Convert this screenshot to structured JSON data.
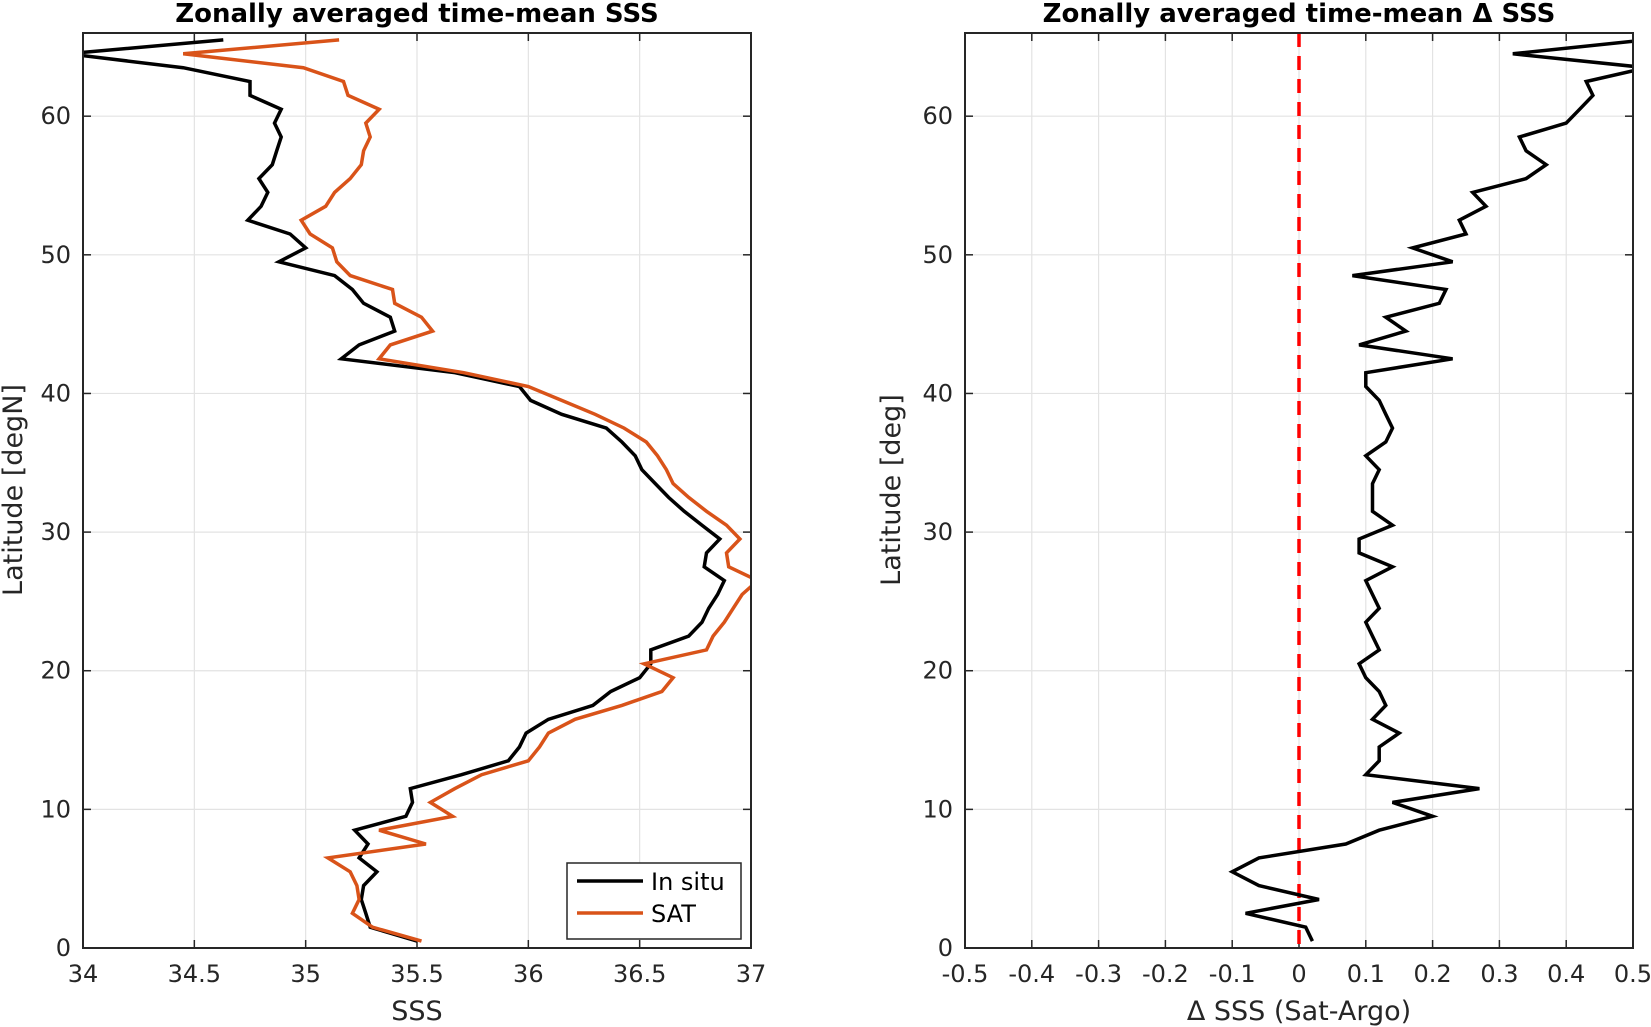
{
  "chart_data": [
    {
      "type": "line",
      "title": "Zonally averaged time-mean SSS",
      "xlabel": "SSS",
      "ylabel": "Latitude [degN]",
      "xlim": [
        34,
        37
      ],
      "ylim": [
        0,
        66
      ],
      "xticks": [
        "34",
        "34.5",
        "35",
        "35.5",
        "36",
        "36.5",
        "37"
      ],
      "yticks": [
        "0",
        "10",
        "20",
        "30",
        "40",
        "50",
        "60"
      ],
      "grid": true,
      "legend_position": "bottom-right",
      "series": [
        {
          "name": "In situ",
          "color": "#000000",
          "points": [
            [
              35.5,
              0.5
            ],
            [
              35.29,
              1.5
            ],
            [
              35.27,
              2.5
            ],
            [
              35.25,
              3.5
            ],
            [
              35.26,
              4.5
            ],
            [
              35.32,
              5.5
            ],
            [
              35.24,
              6.5
            ],
            [
              35.28,
              7.5
            ],
            [
              35.22,
              8.5
            ],
            [
              35.45,
              9.5
            ],
            [
              35.48,
              10.5
            ],
            [
              35.47,
              11.5
            ],
            [
              35.7,
              12.5
            ],
            [
              35.91,
              13.5
            ],
            [
              35.96,
              14.5
            ],
            [
              35.99,
              15.5
            ],
            [
              36.09,
              16.5
            ],
            [
              36.29,
              17.5
            ],
            [
              36.37,
              18.5
            ],
            [
              36.5,
              19.5
            ],
            [
              36.55,
              20.5
            ],
            [
              36.55,
              21.5
            ],
            [
              36.72,
              22.5
            ],
            [
              36.78,
              23.5
            ],
            [
              36.81,
              24.5
            ],
            [
              36.85,
              25.5
            ],
            [
              36.88,
              26.5
            ],
            [
              36.79,
              27.5
            ],
            [
              36.8,
              28.5
            ],
            [
              36.86,
              29.5
            ],
            [
              36.78,
              30.5
            ],
            [
              36.7,
              31.5
            ],
            [
              36.63,
              32.5
            ],
            [
              36.57,
              33.5
            ],
            [
              36.51,
              34.5
            ],
            [
              36.48,
              35.5
            ],
            [
              36.42,
              36.5
            ],
            [
              36.35,
              37.5
            ],
            [
              36.15,
              38.5
            ],
            [
              36.01,
              39.5
            ],
            [
              35.96,
              40.5
            ],
            [
              35.67,
              41.5
            ],
            [
              35.16,
              42.5
            ],
            [
              35.24,
              43.5
            ],
            [
              35.4,
              44.5
            ],
            [
              35.38,
              45.5
            ],
            [
              35.26,
              46.5
            ],
            [
              35.21,
              47.5
            ],
            [
              35.13,
              48.5
            ],
            [
              34.88,
              49.5
            ],
            [
              35.0,
              50.5
            ],
            [
              34.93,
              51.5
            ],
            [
              34.74,
              52.5
            ],
            [
              34.8,
              53.5
            ],
            [
              34.83,
              54.5
            ],
            [
              34.79,
              55.5
            ],
            [
              34.85,
              56.5
            ],
            [
              34.87,
              57.5
            ],
            [
              34.89,
              58.5
            ],
            [
              34.86,
              59.5
            ],
            [
              34.89,
              60.5
            ],
            [
              34.75,
              61.5
            ],
            [
              34.75,
              62.5
            ],
            [
              34.45,
              63.5
            ],
            [
              33.93,
              64.5
            ],
            [
              34.63,
              65.5
            ]
          ]
        },
        {
          "name": "SAT",
          "color": "#D95319",
          "points": [
            [
              35.52,
              0.5
            ],
            [
              35.3,
              1.5
            ],
            [
              35.21,
              2.5
            ],
            [
              35.24,
              3.5
            ],
            [
              35.23,
              4.5
            ],
            [
              35.2,
              5.5
            ],
            [
              35.1,
              6.5
            ],
            [
              35.54,
              7.5
            ],
            [
              35.33,
              8.5
            ],
            [
              35.66,
              9.5
            ],
            [
              35.56,
              10.5
            ],
            [
              35.67,
              11.5
            ],
            [
              35.79,
              12.5
            ],
            [
              36.0,
              13.5
            ],
            [
              36.05,
              14.5
            ],
            [
              36.09,
              15.5
            ],
            [
              36.21,
              16.5
            ],
            [
              36.42,
              17.5
            ],
            [
              36.6,
              18.5
            ],
            [
              36.65,
              19.5
            ],
            [
              36.52,
              20.5
            ],
            [
              36.8,
              21.5
            ],
            [
              36.83,
              22.5
            ],
            [
              36.88,
              23.5
            ],
            [
              36.92,
              24.5
            ],
            [
              36.96,
              25.5
            ],
            [
              37.03,
              26.5
            ],
            [
              36.9,
              27.5
            ],
            [
              36.89,
              28.5
            ],
            [
              36.95,
              29.5
            ],
            [
              36.89,
              30.5
            ],
            [
              36.8,
              31.5
            ],
            [
              36.72,
              32.5
            ],
            [
              36.65,
              33.5
            ],
            [
              36.62,
              34.5
            ],
            [
              36.58,
              35.5
            ],
            [
              36.53,
              36.5
            ],
            [
              36.43,
              37.5
            ],
            [
              36.3,
              38.5
            ],
            [
              36.15,
              39.5
            ],
            [
              36.0,
              40.5
            ],
            [
              35.71,
              41.5
            ],
            [
              35.33,
              42.5
            ],
            [
              35.38,
              43.5
            ],
            [
              35.57,
              44.5
            ],
            [
              35.52,
              45.5
            ],
            [
              35.4,
              46.5
            ],
            [
              35.39,
              47.5
            ],
            [
              35.2,
              48.5
            ],
            [
              35.14,
              49.5
            ],
            [
              35.12,
              50.5
            ],
            [
              35.02,
              51.5
            ],
            [
              34.98,
              52.5
            ],
            [
              35.09,
              53.5
            ],
            [
              35.13,
              54.5
            ],
            [
              35.2,
              55.5
            ],
            [
              35.25,
              56.5
            ],
            [
              35.26,
              57.5
            ],
            [
              35.29,
              58.5
            ],
            [
              35.27,
              59.5
            ],
            [
              35.33,
              60.5
            ],
            [
              35.19,
              61.5
            ],
            [
              35.17,
              62.5
            ],
            [
              34.99,
              63.5
            ],
            [
              34.45,
              64.5
            ],
            [
              35.15,
              65.5
            ]
          ]
        }
      ]
    },
    {
      "type": "line",
      "title": "Zonally averaged time-mean Δ SSS",
      "xlabel": "Δ SSS (Sat-Argo)",
      "ylabel": "Latitude [deg]",
      "xlim": [
        -0.5,
        0.5
      ],
      "ylim": [
        0,
        66
      ],
      "xticks": [
        "-0.5",
        "-0.4",
        "-0.3",
        "-0.2",
        "-0.1",
        "0",
        "0.1",
        "0.2",
        "0.3",
        "0.4",
        "0.5"
      ],
      "yticks": [
        "0",
        "10",
        "20",
        "30",
        "40",
        "50",
        "60"
      ],
      "grid": true,
      "reference_line": {
        "x": 0,
        "color": "#FF0000",
        "style": "dashed"
      },
      "series": [
        {
          "name": "",
          "color": "#000000",
          "points": [
            [
              0.02,
              0.5
            ],
            [
              0.01,
              1.5
            ],
            [
              -0.08,
              2.5
            ],
            [
              0.03,
              3.5
            ],
            [
              -0.06,
              4.5
            ],
            [
              -0.1,
              5.5
            ],
            [
              -0.06,
              6.5
            ],
            [
              0.07,
              7.5
            ],
            [
              0.12,
              8.5
            ],
            [
              0.2,
              9.5
            ],
            [
              0.14,
              10.5
            ],
            [
              0.27,
              11.5
            ],
            [
              0.1,
              12.5
            ],
            [
              0.12,
              13.5
            ],
            [
              0.12,
              14.5
            ],
            [
              0.15,
              15.5
            ],
            [
              0.11,
              16.5
            ],
            [
              0.13,
              17.5
            ],
            [
              0.12,
              18.5
            ],
            [
              0.1,
              19.5
            ],
            [
              0.09,
              20.5
            ],
            [
              0.12,
              21.5
            ],
            [
              0.11,
              22.5
            ],
            [
              0.1,
              23.5
            ],
            [
              0.12,
              24.5
            ],
            [
              0.11,
              25.5
            ],
            [
              0.1,
              26.5
            ],
            [
              0.14,
              27.5
            ],
            [
              0.09,
              28.5
            ],
            [
              0.09,
              29.5
            ],
            [
              0.14,
              30.5
            ],
            [
              0.11,
              31.5
            ],
            [
              0.11,
              32.5
            ],
            [
              0.11,
              33.5
            ],
            [
              0.12,
              34.5
            ],
            [
              0.1,
              35.5
            ],
            [
              0.13,
              36.5
            ],
            [
              0.14,
              37.5
            ],
            [
              0.13,
              38.5
            ],
            [
              0.12,
              39.5
            ],
            [
              0.1,
              40.5
            ],
            [
              0.1,
              41.5
            ],
            [
              0.23,
              42.5
            ],
            [
              0.09,
              43.5
            ],
            [
              0.16,
              44.5
            ],
            [
              0.13,
              45.5
            ],
            [
              0.21,
              46.5
            ],
            [
              0.22,
              47.5
            ],
            [
              0.08,
              48.5
            ],
            [
              0.23,
              49.5
            ],
            [
              0.17,
              50.5
            ],
            [
              0.25,
              51.5
            ],
            [
              0.24,
              52.5
            ],
            [
              0.28,
              53.5
            ],
            [
              0.26,
              54.5
            ],
            [
              0.34,
              55.5
            ],
            [
              0.37,
              56.5
            ],
            [
              0.34,
              57.5
            ],
            [
              0.33,
              58.5
            ],
            [
              0.4,
              59.5
            ],
            [
              0.42,
              60.5
            ],
            [
              0.44,
              61.5
            ],
            [
              0.43,
              62.5
            ],
            [
              0.52,
              63.5
            ],
            [
              0.32,
              64.5
            ],
            [
              0.52,
              65.5
            ]
          ]
        }
      ]
    }
  ]
}
